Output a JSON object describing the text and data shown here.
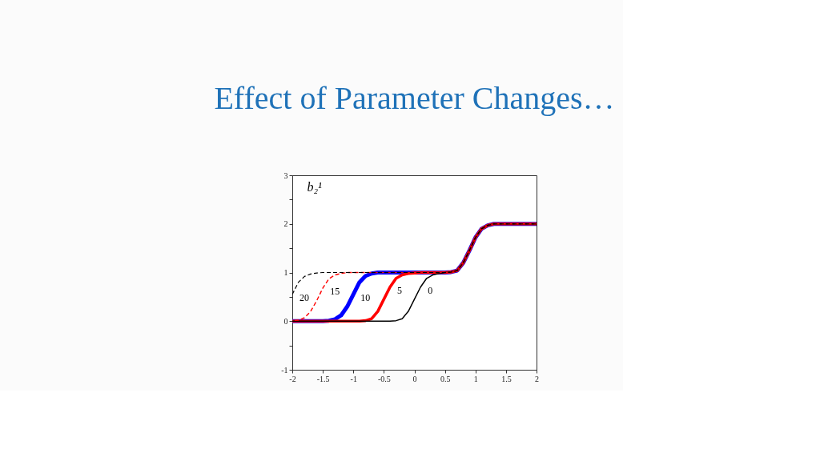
{
  "chart_data": {
    "type": "line",
    "title": "Effect of Parameter Changes…",
    "ylabel": "b₂¹",
    "x": [
      -2,
      -1.9,
      -1.8,
      -1.7,
      -1.6,
      -1.5,
      -1.4,
      -1.3,
      -1.2,
      -1.1,
      -1,
      -0.9,
      -0.8,
      -0.7,
      -0.6,
      -0.5,
      -0.4,
      -0.3,
      -0.2,
      -0.1,
      0,
      0.1,
      0.2,
      0.3,
      0.4,
      0.5,
      0.6,
      0.7,
      0.8,
      0.9,
      1,
      1.1,
      1.2,
      1.3,
      1.4,
      1.5,
      1.6,
      1.7,
      1.8,
      1.9,
      2
    ],
    "series": [
      {
        "name": "10",
        "color": "#0000ff",
        "line_style": "solid",
        "values": [
          0,
          0,
          0,
          0,
          0,
          0,
          0.01,
          0.04,
          0.12,
          0.3,
          0.55,
          0.8,
          0.93,
          0.98,
          1,
          1,
          1,
          1,
          1,
          1,
          1,
          1,
          1,
          1,
          1,
          1,
          1.01,
          1.04,
          1.2,
          1.45,
          1.72,
          1.9,
          1.97,
          2,
          2,
          2,
          2,
          2,
          2,
          2,
          2
        ]
      },
      {
        "name": "5",
        "color": "#ff0000",
        "line_style": "solid",
        "values": [
          0,
          0,
          0,
          0,
          0,
          0,
          0,
          0,
          0,
          0,
          0,
          0,
          0.01,
          0.05,
          0.2,
          0.45,
          0.7,
          0.88,
          0.95,
          0.98,
          0.99,
          1,
          1,
          1,
          1,
          1,
          1.01,
          1.04,
          1.2,
          1.45,
          1.72,
          1.9,
          1.97,
          2,
          2,
          2,
          2,
          2,
          2,
          2,
          2
        ]
      },
      {
        "name": "0",
        "color": "#000000",
        "line_style": "solid",
        "values": [
          0,
          0,
          0,
          0,
          0,
          0,
          0,
          0,
          0,
          0,
          0,
          0,
          0,
          0,
          0,
          0,
          0,
          0.01,
          0.05,
          0.2,
          0.45,
          0.7,
          0.88,
          0.95,
          0.98,
          1.0,
          1.01,
          1.04,
          1.2,
          1.45,
          1.72,
          1.9,
          1.97,
          2,
          2,
          2,
          2,
          2,
          2,
          2,
          2
        ]
      },
      {
        "name": "15",
        "color": "#ff0000",
        "line_style": "dashed",
        "values": [
          0.01,
          0.02,
          0.07,
          0.2,
          0.42,
          0.68,
          0.87,
          0.95,
          0.98,
          1,
          1,
          1,
          1,
          1,
          1,
          1,
          1,
          1,
          1,
          1,
          1,
          1,
          1,
          1,
          1,
          1,
          1.01,
          1.04,
          1.2,
          1.45,
          1.72,
          1.9,
          1.97,
          2,
          2,
          2,
          2,
          2,
          2,
          2,
          2
        ]
      },
      {
        "name": "20",
        "color": "#000000",
        "line_style": "dashed",
        "values": [
          0.55,
          0.8,
          0.92,
          0.97,
          0.99,
          1,
          1,
          1,
          1,
          1,
          1,
          1,
          1,
          1,
          1,
          1,
          1,
          1,
          1,
          1,
          1,
          1,
          1,
          1,
          1,
          1,
          1.01,
          1.04,
          1.2,
          1.45,
          1.72,
          1.9,
          1.97,
          2,
          2,
          2,
          2,
          2,
          2,
          2,
          2
        ]
      }
    ],
    "xlim": [
      -2,
      2
    ],
    "xticks": [
      -2,
      -1.5,
      -1,
      -0.5,
      0,
      0.5,
      1,
      1.5,
      2
    ],
    "ylim": [
      -1,
      3
    ],
    "yticks": [
      -1,
      {
        "value": -0.5,
        "label": null
      },
      0,
      {
        "value": 0.5,
        "label": null
      },
      1,
      {
        "value": 1.5,
        "label": null
      },
      2,
      {
        "value": 2.5,
        "label": null
      },
      3
    ],
    "grid": false,
    "marker": "none"
  }
}
